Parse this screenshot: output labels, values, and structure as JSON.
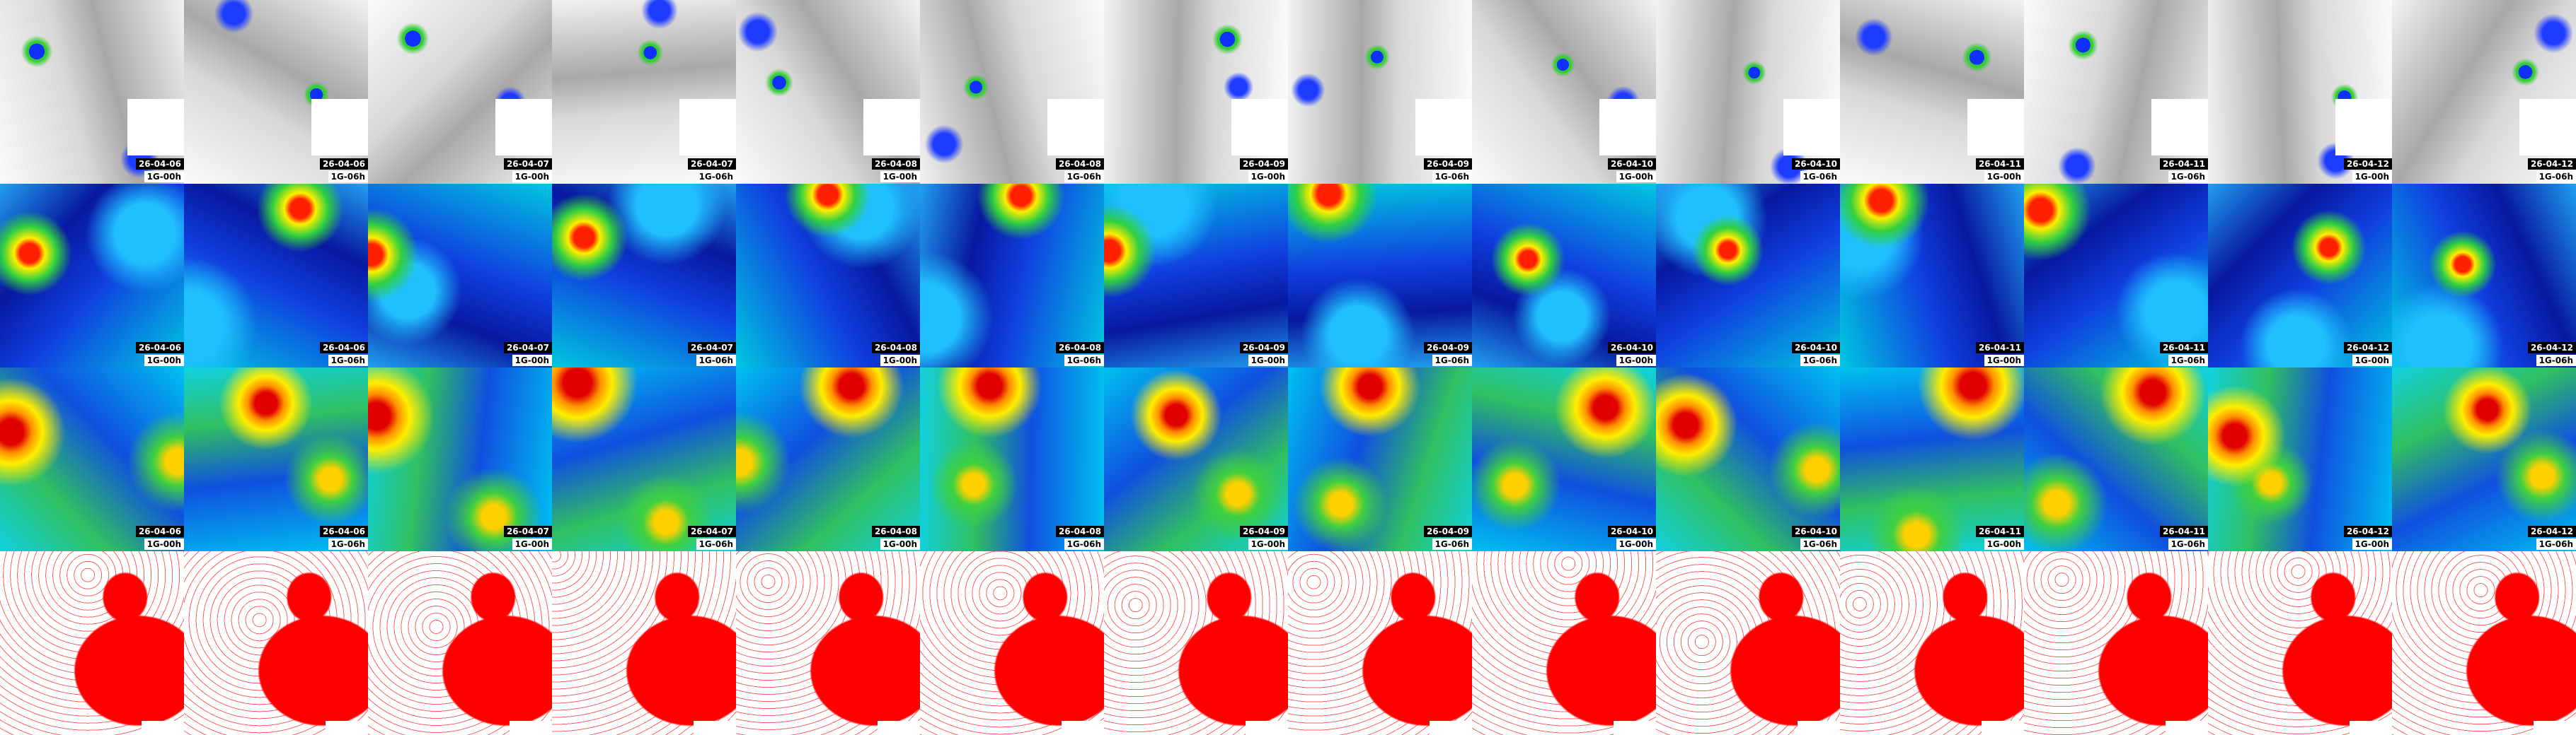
{
  "columns": [
    {
      "date": "26-04-06",
      "time": "1G-00h"
    },
    {
      "date": "26-04-06",
      "time": "1G-06h"
    },
    {
      "date": "26-04-07",
      "time": "1G-00h"
    },
    {
      "date": "26-04-07",
      "time": "1G-06h"
    },
    {
      "date": "26-04-08",
      "time": "1G-00h"
    },
    {
      "date": "26-04-08",
      "time": "1G-06h"
    },
    {
      "date": "26-04-09",
      "time": "1G-00h"
    },
    {
      "date": "26-04-09",
      "time": "1G-06h"
    },
    {
      "date": "26-04-10",
      "time": "1G-00h"
    },
    {
      "date": "26-04-10",
      "time": "1G-06h"
    },
    {
      "date": "26-04-11",
      "time": "1G-00h"
    },
    {
      "date": "26-04-11",
      "time": "1G-06h"
    },
    {
      "date": "26-04-12",
      "time": "1G-00h"
    },
    {
      "date": "26-04-12",
      "time": "1G-06h"
    }
  ]
}
